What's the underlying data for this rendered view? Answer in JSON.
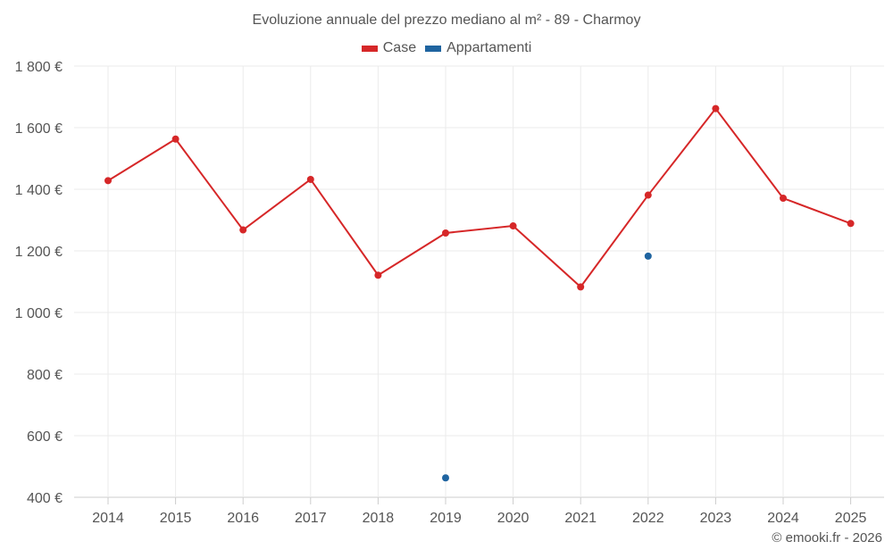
{
  "chart_data": {
    "type": "line",
    "title": "Evoluzione annuale del prezzo mediano al m² - 89 - Charmoy",
    "categories": [
      "2014",
      "2015",
      "2016",
      "2017",
      "2018",
      "2019",
      "2020",
      "2021",
      "2022",
      "2023",
      "2024",
      "2025"
    ],
    "series": [
      {
        "name": "Case",
        "color": "#d62728",
        "values": [
          1428,
          1563,
          1268,
          1432,
          1121,
          1258,
          1281,
          1083,
          1381,
          1662,
          1371,
          1289
        ]
      },
      {
        "name": "Appartamenti",
        "color": "#1f64a0",
        "values": [
          null,
          null,
          null,
          null,
          null,
          463,
          null,
          null,
          1183,
          null,
          null,
          null
        ]
      }
    ],
    "y_ticks": [
      {
        "value": 400,
        "label": "400 €"
      },
      {
        "value": 600,
        "label": "600 €"
      },
      {
        "value": 800,
        "label": "800 €"
      },
      {
        "value": 1000,
        "label": "1 000 €"
      },
      {
        "value": 1200,
        "label": "1 200 €"
      },
      {
        "value": 1400,
        "label": "1 400 €"
      },
      {
        "value": 1600,
        "label": "1 600 €"
      },
      {
        "value": 1800,
        "label": "1 800 €"
      }
    ],
    "ylim": [
      400,
      1800
    ],
    "grid": true,
    "legend_position": "top-center"
  },
  "credit": "© emooki.fr - 2026"
}
